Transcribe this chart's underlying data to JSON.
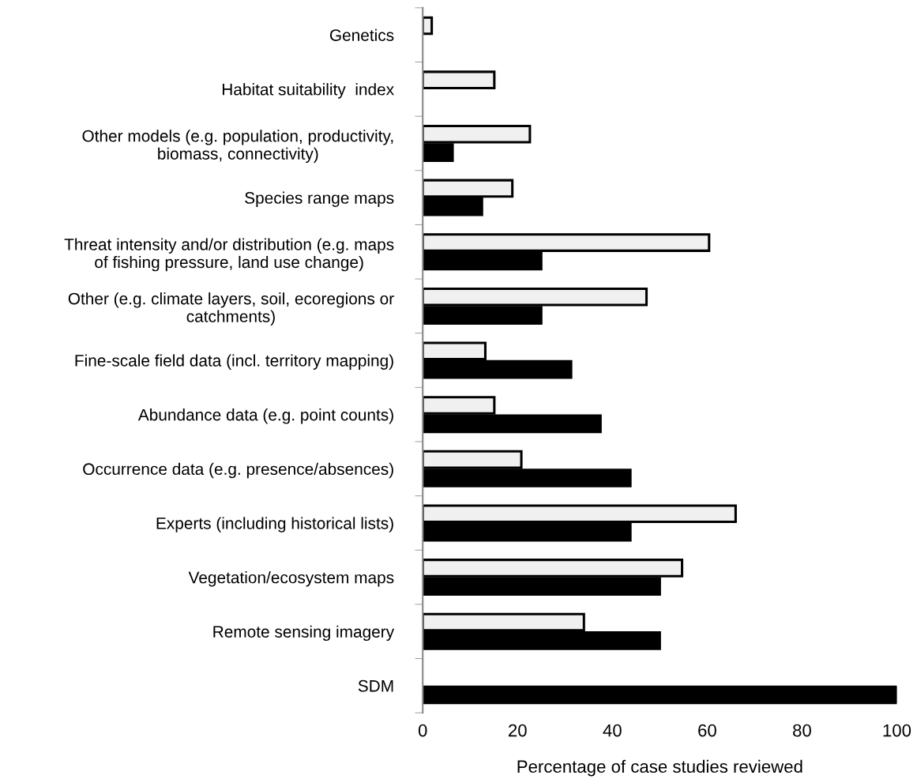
{
  "chart_data": {
    "type": "bar",
    "orientation": "horizontal",
    "xlabel": "Percentage of case studies reviewed",
    "categories": [
      "Genetics",
      "Habitat suitability  index",
      "Other models (e.g. population, productivity,\nbiomass, connectivity)",
      "Species range maps",
      "Threat intensity and/or distribution (e.g. maps\nof fishing pressure, land use change)",
      "Other (e.g. climate layers, soil, ecoregions or\ncatchments)",
      "Fine-scale field data (incl. territory mapping)",
      "Abundance data (e.g. point counts)",
      "Occurrence data (e.g. presence/absences)",
      "Experts (including historical lists)",
      "Vegetation/ecosystem maps",
      "Remote sensing imagery",
      "SDM"
    ],
    "series": [
      {
        "color": "#f0f0f0",
        "values": [
          1.9,
          15.1,
          22.6,
          18.9,
          60.4,
          47.2,
          13.2,
          15.1,
          20.8,
          66.0,
          54.7,
          34.0,
          null
        ]
      },
      {
        "color": "#000000",
        "values": [
          null,
          null,
          6.3,
          12.5,
          25.0,
          25.0,
          31.3,
          37.5,
          43.8,
          43.8,
          50.0,
          50.0,
          100.0
        ]
      }
    ],
    "xlim": [
      0,
      100
    ],
    "xticks": [
      0,
      20,
      40,
      60,
      80,
      100
    ],
    "grid": false,
    "legend": false
  }
}
